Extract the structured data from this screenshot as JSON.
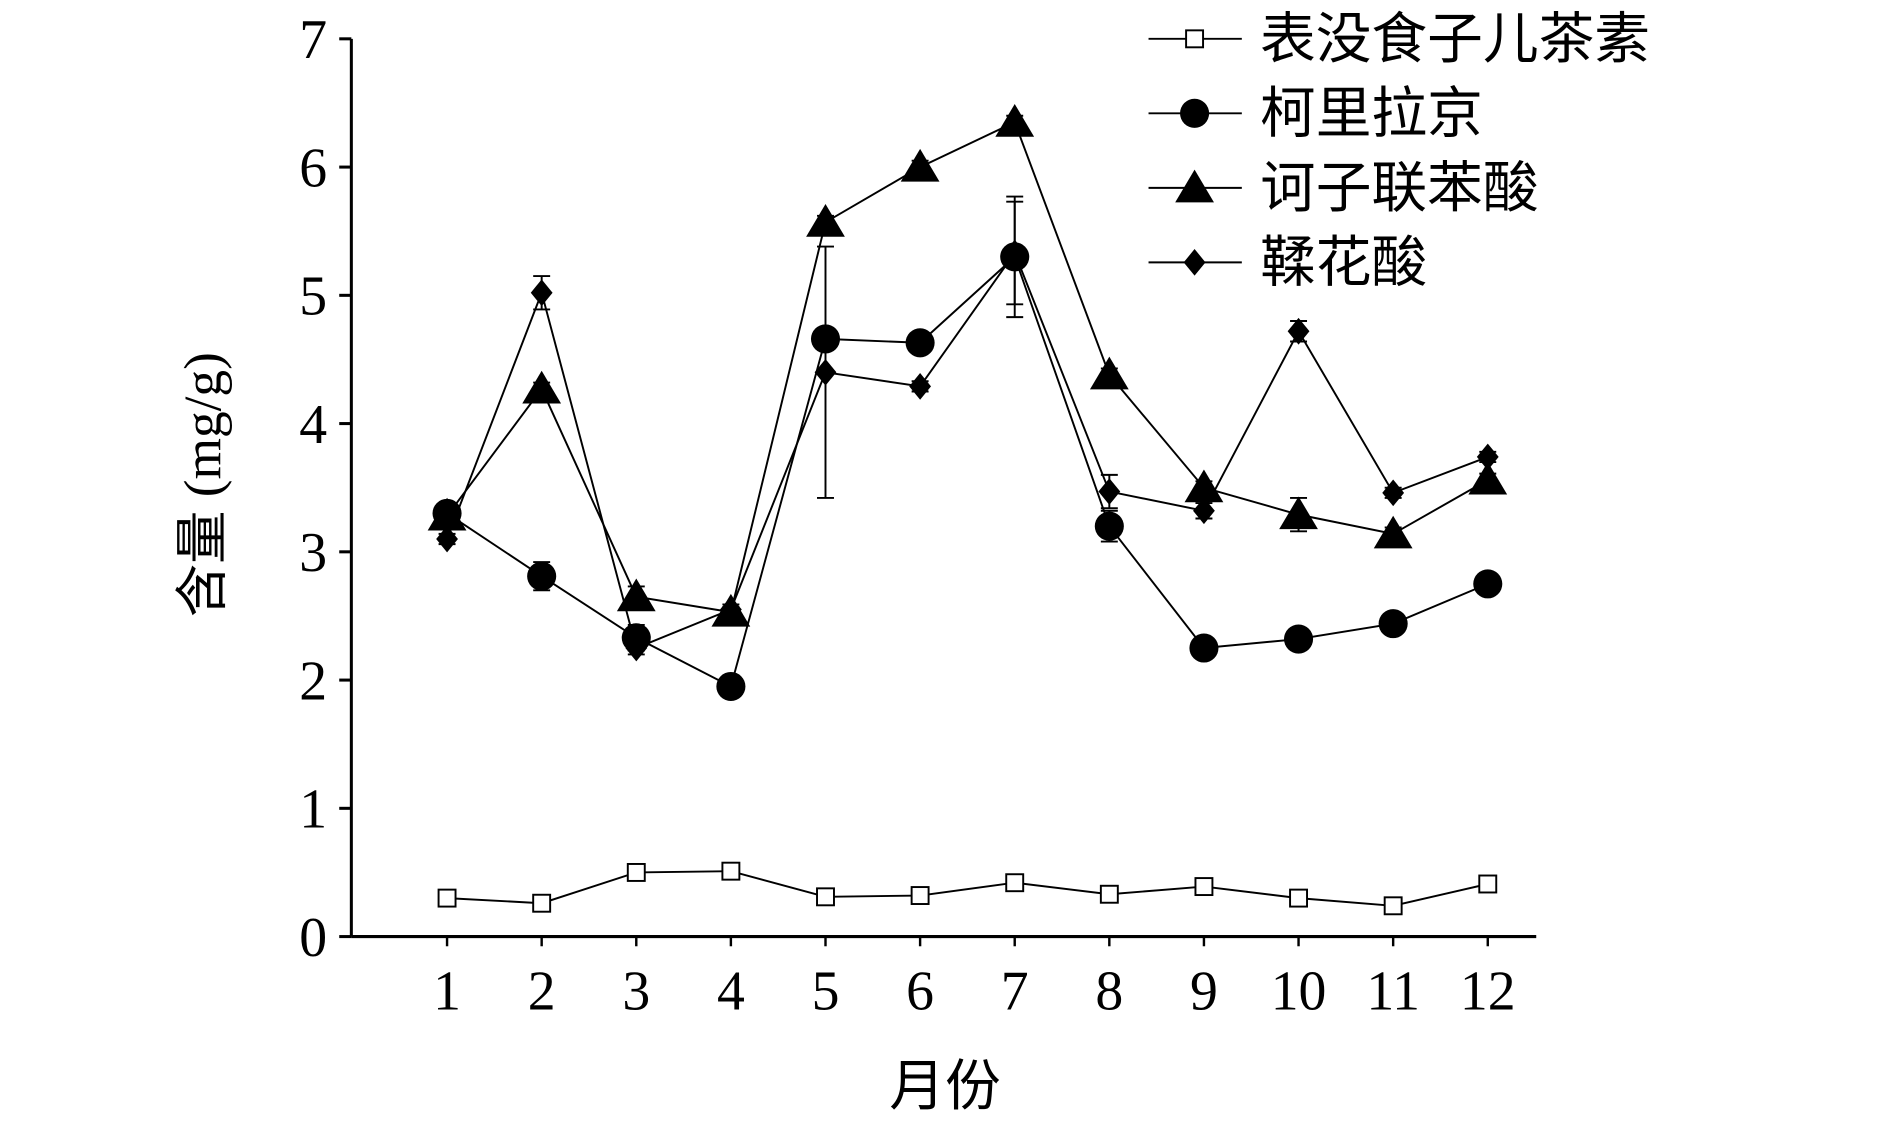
{
  "chart_data": {
    "type": "line",
    "x_label": "月份",
    "y_label": "含量 (mg/g)",
    "categories": [
      "1",
      "2",
      "3",
      "4",
      "5",
      "6",
      "7",
      "8",
      "9",
      "10",
      "11",
      "12"
    ],
    "ylim": [
      0,
      7
    ],
    "yticks": [
      0,
      1,
      2,
      3,
      4,
      5,
      6,
      7
    ],
    "legend": "top-right",
    "series": [
      {
        "name": "表没食子儿茶素",
        "color": "#000000",
        "marker": "open-square",
        "values": [
          0.3,
          0.26,
          0.5,
          0.51,
          0.31,
          0.32,
          0.42,
          0.33,
          0.39,
          0.3,
          0.24,
          0.41
        ],
        "errors": [
          0.02,
          0.02,
          0.02,
          0.02,
          0.02,
          0.02,
          0.02,
          0.02,
          0.02,
          0.02,
          0.02,
          0.02
        ]
      },
      {
        "name": "柯里拉京",
        "color": "#000000",
        "marker": "circle",
        "values": [
          3.3,
          2.81,
          2.33,
          1.95,
          4.66,
          4.63,
          5.3,
          3.2,
          2.25,
          2.32,
          2.44,
          2.75
        ],
        "errors": [
          0.05,
          0.11,
          0.1,
          0.03,
          0.05,
          0.05,
          0.47,
          0.12,
          0.08,
          0.04,
          0.04,
          0.04
        ]
      },
      {
        "name": "诃子联苯酸",
        "color": "#000000",
        "marker": "triangle",
        "values": [
          3.28,
          4.27,
          2.65,
          2.53,
          5.57,
          6.0,
          6.35,
          4.38,
          3.5,
          3.29,
          3.14,
          3.56
        ],
        "errors": [
          0.05,
          0.05,
          0.08,
          0.04,
          0.05,
          0.05,
          0.05,
          0.05,
          0.05,
          0.13,
          0.05,
          0.05
        ]
      },
      {
        "name": "鞣花酸",
        "color": "#000000",
        "marker": "diamond",
        "values": [
          3.1,
          5.02,
          2.25,
          2.55,
          4.4,
          4.29,
          5.33,
          3.47,
          3.32,
          4.72,
          3.46,
          3.74
        ],
        "errors": [
          0.04,
          0.13,
          0.05,
          0.04,
          0.98,
          0.04,
          0.4,
          0.13,
          0.06,
          0.08,
          0.04,
          0.04
        ]
      }
    ]
  }
}
